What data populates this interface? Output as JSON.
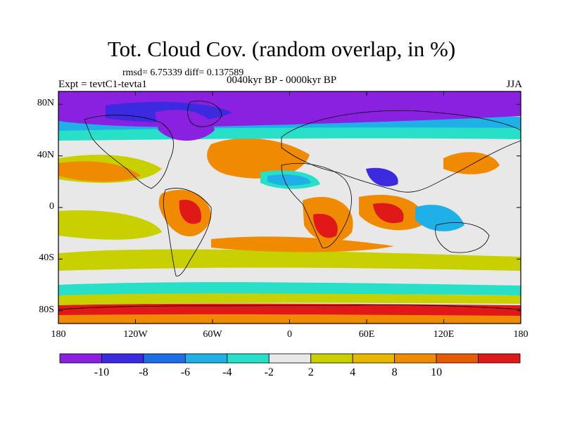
{
  "title": "Tot. Cloud Cov. (random overlap, in %)",
  "stats": "rmsd= 6.75339 diff= 0.137589",
  "period": "0040kyr BP - 0000kyr BP",
  "experiment": "Expt = tevtC1-tevta1",
  "season": "JJA",
  "map": {
    "lat_ticks": [
      {
        "label": "80N",
        "lat": 80
      },
      {
        "label": "40N",
        "lat": 40
      },
      {
        "label": "0",
        "lat": 0
      },
      {
        "label": "40S",
        "lat": -40
      },
      {
        "label": "80S",
        "lat": -80
      }
    ],
    "lon_ticks": [
      {
        "label": "180",
        "lon": -180
      },
      {
        "label": "120W",
        "lon": -120
      },
      {
        "label": "60W",
        "lon": -60
      },
      {
        "label": "0",
        "lon": 0
      },
      {
        "label": "60E",
        "lon": 60
      },
      {
        "label": "120E",
        "lon": 120
      },
      {
        "label": "180",
        "lon": 180
      }
    ],
    "lat_range": [
      -90,
      90
    ],
    "lon_range": [
      -180,
      180
    ]
  },
  "colorbar": {
    "colors": [
      "#8a20e0",
      "#3b2ae0",
      "#1c6ee6",
      "#1eb0e6",
      "#28e0c8",
      "#e8e8e8",
      "#c8d000",
      "#e8b800",
      "#f08a00",
      "#e85a00",
      "#e01818"
    ],
    "labels": [
      "-10",
      "-8",
      "-6",
      "-4",
      "-2",
      "2",
      "4",
      "8",
      "10"
    ]
  }
}
